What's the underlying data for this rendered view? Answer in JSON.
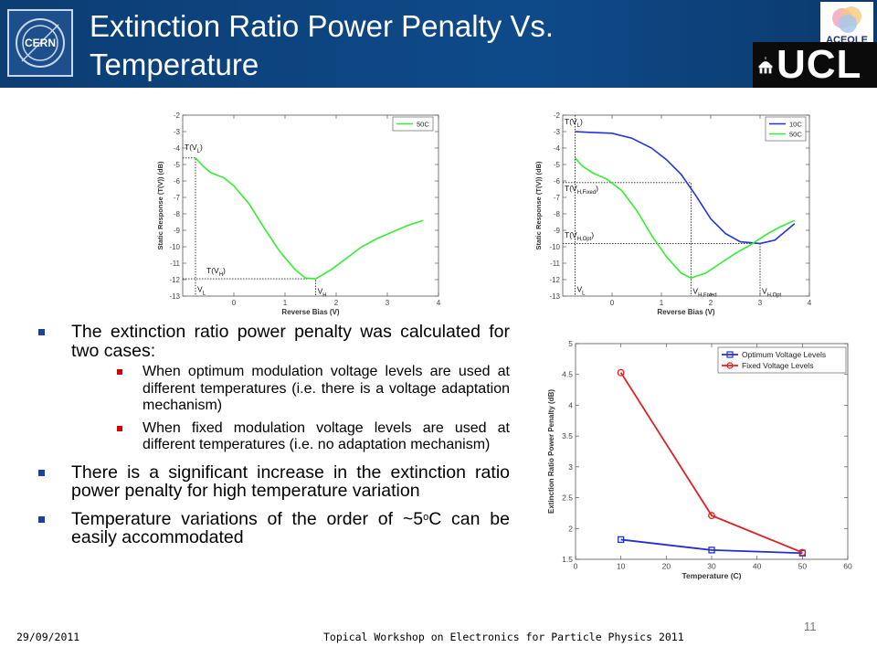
{
  "header": {
    "title_line1": "Extinction Ratio Power Penalty Vs.",
    "title_line2": "Temperature",
    "logos": {
      "left": "CERN",
      "top_right": "ACEOLE",
      "bottom_right": "UCL"
    },
    "colors": {
      "bar": "#0e4a8a",
      "ucl_bg": "#0b0b0b"
    }
  },
  "bullets": [
    {
      "text": "The extinction ratio power penalty was calculated for two cases:",
      "sub": [
        "When optimum modulation voltage levels are used at different temperatures (i.e. there is a voltage adaptation mechanism)",
        "When fixed modulation voltage levels are used at different temperatures (i.e. no adaptation mechanism)"
      ]
    },
    {
      "text": "There is a significant increase in the extinction ratio power penalty for high temperature variation"
    },
    {
      "text_before": "Temperature variations of the order of ~5",
      "sup": "o",
      "text_after": "C can be easily accommodated"
    }
  ],
  "footer": {
    "date": "29/09/2011",
    "center": "Topical Workshop on Electronics for Particle Physics 2011",
    "page_number": "11"
  },
  "chart_data": [
    {
      "type": "line",
      "xlabel": "Reverse Bias (V)",
      "ylabel": "Static Response (T(V)) (dB)",
      "xlim": [
        -1,
        4
      ],
      "ylim": [
        -13,
        -2
      ],
      "xticks": [
        "0",
        "1",
        "2",
        "3",
        "4"
      ],
      "yticks": [
        "-2",
        "-3",
        "-4",
        "-5",
        "-6",
        "-7",
        "-8",
        "-9",
        "-10",
        "-11",
        "-12",
        "-13"
      ],
      "series": [
        {
          "name": "50C",
          "color": "#33ee33",
          "x": [
            -0.75,
            -0.6,
            -0.45,
            -0.2,
            0.0,
            0.3,
            0.6,
            0.9,
            1.2,
            1.4,
            1.6,
            1.9,
            2.2,
            2.5,
            2.8,
            3.1,
            3.4,
            3.7
          ],
          "y": [
            -4.6,
            -5.1,
            -5.5,
            -5.8,
            -6.3,
            -7.4,
            -8.9,
            -10.3,
            -11.4,
            -11.9,
            -11.95,
            -11.4,
            -10.7,
            -10.0,
            -9.5,
            -9.1,
            -8.7,
            -8.4
          ]
        }
      ],
      "annotations": [
        "T(VL)",
        "T(VH)",
        "VL",
        "VH"
      ],
      "guides": {
        "VL": -0.75,
        "VH": 1.6,
        "T_VL": -4.6,
        "T_VH": -11.95
      }
    },
    {
      "type": "line",
      "xlabel": "Reverse Bias (V)",
      "ylabel": "Static Response (T(V)) (dB)",
      "xlim": [
        -1,
        4
      ],
      "ylim": [
        -13,
        -2
      ],
      "xticks": [
        "0",
        "1",
        "2",
        "3",
        "4"
      ],
      "yticks": [
        "-2",
        "-3",
        "-4",
        "-5",
        "-6",
        "-7",
        "-8",
        "-9",
        "-10",
        "-11",
        "-12",
        "-13"
      ],
      "series": [
        {
          "name": "10C",
          "color": "#2233dd",
          "x": [
            -0.75,
            -0.4,
            0.0,
            0.4,
            0.8,
            1.1,
            1.4,
            1.7,
            2.0,
            2.3,
            2.6,
            3.0,
            3.3,
            3.5,
            3.7
          ],
          "y": [
            -3.0,
            -3.05,
            -3.1,
            -3.4,
            -4.0,
            -4.7,
            -5.6,
            -6.9,
            -8.3,
            -9.2,
            -9.7,
            -9.8,
            -9.6,
            -9.1,
            -8.6
          ]
        },
        {
          "name": "50C",
          "color": "#33ee33",
          "x": [
            -0.75,
            -0.6,
            -0.4,
            -0.1,
            0.2,
            0.5,
            0.8,
            1.1,
            1.4,
            1.6,
            1.9,
            2.2,
            2.5,
            2.8,
            3.1,
            3.4,
            3.7
          ],
          "y": [
            -4.6,
            -5.1,
            -5.5,
            -5.9,
            -6.6,
            -7.8,
            -9.3,
            -10.6,
            -11.6,
            -11.9,
            -11.6,
            -11.0,
            -10.4,
            -9.9,
            -9.3,
            -8.8,
            -8.4
          ]
        }
      ],
      "annotations": [
        "T(VL)",
        "T(VH,Fixed)",
        "T(VH,Opt)",
        "VL",
        "VH,Fixed",
        "VH,Opt"
      ],
      "guides": {
        "VL": -0.75,
        "VH_Fixed": 1.6,
        "VH_Opt": 3.0,
        "T_VL": -3.0,
        "T_VH_Fixed": -6.1,
        "T_VH_Opt": -9.8
      }
    },
    {
      "type": "line",
      "xlabel": "Temperature (C)",
      "ylabel": "Extinction Ratio Power Penalty (dB)",
      "xlim": [
        0,
        60
      ],
      "ylim": [
        1.5,
        5
      ],
      "xticks": [
        "0",
        "10",
        "20",
        "30",
        "40",
        "50",
        "60"
      ],
      "yticks": [
        "1.5",
        "2",
        "2.5",
        "3",
        "3.5",
        "4",
        "4.5",
        "5"
      ],
      "legend_position": "top-right",
      "series": [
        {
          "name": "Optimum Voltage Levels",
          "color": "#1f2fd0",
          "marker": "square",
          "x": [
            10,
            30,
            50
          ],
          "y": [
            1.82,
            1.65,
            1.6
          ]
        },
        {
          "name": "Fixed Voltage Levels",
          "color": "#e02020",
          "marker": "circle",
          "x": [
            10,
            30,
            50
          ],
          "y": [
            4.53,
            2.21,
            1.61
          ]
        }
      ]
    }
  ]
}
